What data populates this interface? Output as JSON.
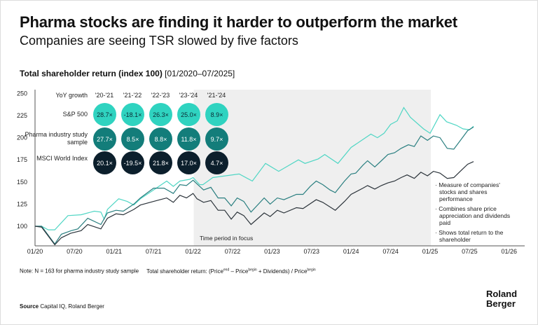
{
  "title": "Pharma stocks are finding it harder to outperform the market",
  "subtitle": "Companies are seeing TSR slowed by five factors",
  "chart_title_bold": "Total shareholder return (index 100)",
  "chart_title_range": "[01/2020–07/2025]",
  "focus_label": "Time period in focus",
  "table": {
    "header": "YoY growth",
    "columns": [
      "'20-'21",
      "'21-'22",
      "'22-'23",
      "'23-'24",
      "'21-'24"
    ],
    "rows": [
      {
        "label": "S&P 500",
        "color": "#2fd3c0",
        "text_color": "#0b2a33",
        "values": [
          "28.7×",
          "-18.1×",
          "26.3×",
          "25.0×",
          "8.9×"
        ]
      },
      {
        "label": "Pharma industry study sample",
        "color": "#137d7a",
        "text_color": "#ffffff",
        "values": [
          "27.7×",
          "8.5×",
          "8.8×",
          "11.8×",
          "9.7×"
        ]
      },
      {
        "label": "MSCI World Index",
        "color": "#0c1f2c",
        "text_color": "#ffffff",
        "values": [
          "20.1×",
          "-19.5×",
          "21.8×",
          "17.0×",
          "4.7×"
        ]
      }
    ]
  },
  "bullets": [
    "Measure of companies' stocks and shares performance",
    "Combines share price appreciation and dividends paid",
    "Shows total return to the shareholder"
  ],
  "note": "Note: N = 163 for pharma industry study sample",
  "formula": "Total shareholder return: (Price",
  "formula_parts": [
    "end",
    " – Price",
    "begin",
    " + Dividends) / Price",
    "begin"
  ],
  "source_bold": "Source",
  "source": "Capital IQ, Roland Berger",
  "logo": [
    "Roland",
    "Berger"
  ],
  "chart_data": {
    "type": "line",
    "title": "Total shareholder return (index 100)",
    "x_unit": "months since 01/2020",
    "xticks": [
      "01/20",
      "07/20",
      "01/21",
      "07/21",
      "01/22",
      "07/22",
      "01/23",
      "07/23",
      "01/24",
      "07/24",
      "01/25",
      "07/25",
      "01/26"
    ],
    "xlim": [
      0,
      72
    ],
    "ylim": [
      100,
      250
    ],
    "yticks": [
      100,
      125,
      150,
      175,
      200,
      225,
      250
    ],
    "highlight_range": [
      24,
      60
    ],
    "series": [
      {
        "name": "S&P 500",
        "color": "#4fd6c4",
        "points": [
          [
            0,
            100
          ],
          [
            1,
            100
          ],
          [
            2,
            96
          ],
          [
            3,
            96
          ],
          [
            5,
            112
          ],
          [
            7,
            113
          ],
          [
            9,
            117
          ],
          [
            10,
            116
          ],
          [
            10.5,
            108
          ],
          [
            11,
            119
          ],
          [
            12.7,
            131
          ],
          [
            14,
            128
          ],
          [
            15,
            124
          ],
          [
            16,
            131
          ],
          [
            18,
            141
          ],
          [
            20,
            151
          ],
          [
            21,
            145
          ],
          [
            22,
            151
          ],
          [
            23.5,
            153
          ],
          [
            24,
            155
          ],
          [
            25,
            147
          ],
          [
            25.5,
            147
          ],
          [
            27,
            155
          ],
          [
            31,
            159
          ],
          [
            33,
            151
          ],
          [
            35,
            171
          ],
          [
            37,
            162
          ],
          [
            40,
            175
          ],
          [
            41,
            171
          ],
          [
            43,
            176
          ],
          [
            44,
            181
          ],
          [
            46,
            171
          ],
          [
            48,
            189
          ],
          [
            51,
            204
          ],
          [
            52,
            200
          ],
          [
            53,
            205
          ],
          [
            54,
            215
          ],
          [
            55,
            219
          ],
          [
            56,
            234
          ],
          [
            57,
            223
          ],
          [
            59,
            210
          ],
          [
            60,
            205
          ],
          [
            61.5,
            226
          ],
          [
            62.5,
            218
          ],
          [
            64,
            214
          ],
          [
            65,
            210
          ],
          [
            66,
            209
          ],
          [
            66.6,
            213
          ]
        ]
      },
      {
        "name": "Pharma industry study sample",
        "color": "#2a7f80",
        "points": [
          [
            0,
            100
          ],
          [
            1,
            100
          ],
          [
            3,
            80
          ],
          [
            4,
            91
          ],
          [
            5.5,
            95
          ],
          [
            6.5,
            97
          ],
          [
            8,
            109
          ],
          [
            10,
            102
          ],
          [
            11,
            115
          ],
          [
            12.3,
            118
          ],
          [
            13.4,
            117
          ],
          [
            15,
            125
          ],
          [
            16,
            132
          ],
          [
            18,
            143
          ],
          [
            19.6,
            143
          ],
          [
            21,
            137
          ],
          [
            22,
            147
          ],
          [
            23,
            146
          ],
          [
            24,
            152
          ],
          [
            25.6,
            141
          ],
          [
            26.7,
            144
          ],
          [
            27.8,
            132
          ],
          [
            28.8,
            132
          ],
          [
            29.8,
            123
          ],
          [
            30.7,
            132
          ],
          [
            31.7,
            128
          ],
          [
            32.8,
            116
          ],
          [
            34.8,
            132
          ],
          [
            35.7,
            125
          ],
          [
            36.8,
            132
          ],
          [
            37.8,
            130
          ],
          [
            39.7,
            136
          ],
          [
            40.7,
            136
          ],
          [
            41.8,
            145
          ],
          [
            42.7,
            151
          ],
          [
            43.7,
            147
          ],
          [
            44.8,
            141
          ],
          [
            45.6,
            138
          ],
          [
            47,
            151
          ],
          [
            48,
            159
          ],
          [
            48.7,
            160
          ],
          [
            49.8,
            169
          ],
          [
            50.5,
            174
          ],
          [
            51.6,
            167
          ],
          [
            52.6,
            174
          ],
          [
            53.6,
            181
          ],
          [
            54.6,
            183
          ],
          [
            55.6,
            188
          ],
          [
            56.7,
            192
          ],
          [
            57.6,
            190
          ],
          [
            58.6,
            202
          ],
          [
            59.6,
            197
          ],
          [
            60.5,
            202
          ],
          [
            61.5,
            200
          ],
          [
            62.6,
            188
          ],
          [
            63.6,
            187
          ],
          [
            64.7,
            198
          ],
          [
            65.7,
            208
          ],
          [
            66.6,
            212
          ]
        ]
      },
      {
        "name": "MSCI World Index",
        "color": "#2b333a",
        "points": [
          [
            0,
            100
          ],
          [
            1,
            99
          ],
          [
            3,
            79
          ],
          [
            4,
            87
          ],
          [
            5.4,
            92
          ],
          [
            7,
            95
          ],
          [
            8,
            102
          ],
          [
            10,
            97
          ],
          [
            11,
            109
          ],
          [
            12.3,
            114
          ],
          [
            13.4,
            113
          ],
          [
            15,
            119
          ],
          [
            16,
            124
          ],
          [
            18,
            128
          ],
          [
            19,
            130
          ],
          [
            20,
            132
          ],
          [
            21,
            127
          ],
          [
            22,
            135
          ],
          [
            23,
            132
          ],
          [
            24,
            137
          ],
          [
            24.6,
            131
          ],
          [
            25.6,
            127
          ],
          [
            26.7,
            129
          ],
          [
            27.8,
            118
          ],
          [
            28.8,
            118
          ],
          [
            29.8,
            108
          ],
          [
            30.7,
            116
          ],
          [
            31.7,
            112
          ],
          [
            32.8,
            102
          ],
          [
            34.8,
            115
          ],
          [
            35.7,
            111
          ],
          [
            36.8,
            118
          ],
          [
            37.8,
            115
          ],
          [
            39.7,
            121
          ],
          [
            40.7,
            120
          ],
          [
            42.7,
            130
          ],
          [
            43.7,
            127
          ],
          [
            45.6,
            118
          ],
          [
            47,
            128
          ],
          [
            48,
            136
          ],
          [
            49.8,
            143
          ],
          [
            50.5,
            146
          ],
          [
            51.6,
            142
          ],
          [
            52.6,
            146
          ],
          [
            53.6,
            149
          ],
          [
            54.6,
            151
          ],
          [
            55.6,
            155
          ],
          [
            56.5,
            158
          ],
          [
            57.6,
            154
          ],
          [
            58.6,
            161
          ],
          [
            59.6,
            157
          ],
          [
            60.5,
            162
          ],
          [
            61.5,
            160
          ],
          [
            62.6,
            154
          ],
          [
            63.6,
            155
          ],
          [
            64.7,
            163
          ],
          [
            65.7,
            170
          ],
          [
            66.6,
            173
          ]
        ]
      }
    ]
  }
}
